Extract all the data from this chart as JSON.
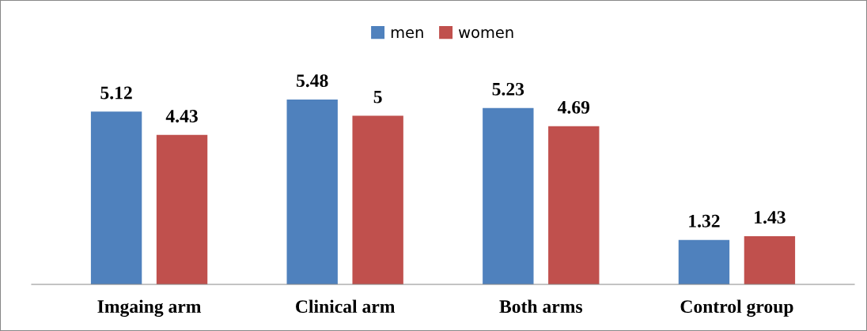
{
  "chart_data": {
    "type": "bar",
    "categories": [
      "Imgaing arm",
      "Clinical arm",
      "Both arms",
      "Control group"
    ],
    "series": [
      {
        "name": "men",
        "color": "#4f81bd",
        "values": [
          5.12,
          5.48,
          5.23,
          1.32
        ]
      },
      {
        "name": "women",
        "color": "#c0504d",
        "values": [
          4.43,
          5,
          4.69,
          1.43
        ]
      }
    ],
    "data_labels": true,
    "legend": "top",
    "grid": false
  }
}
